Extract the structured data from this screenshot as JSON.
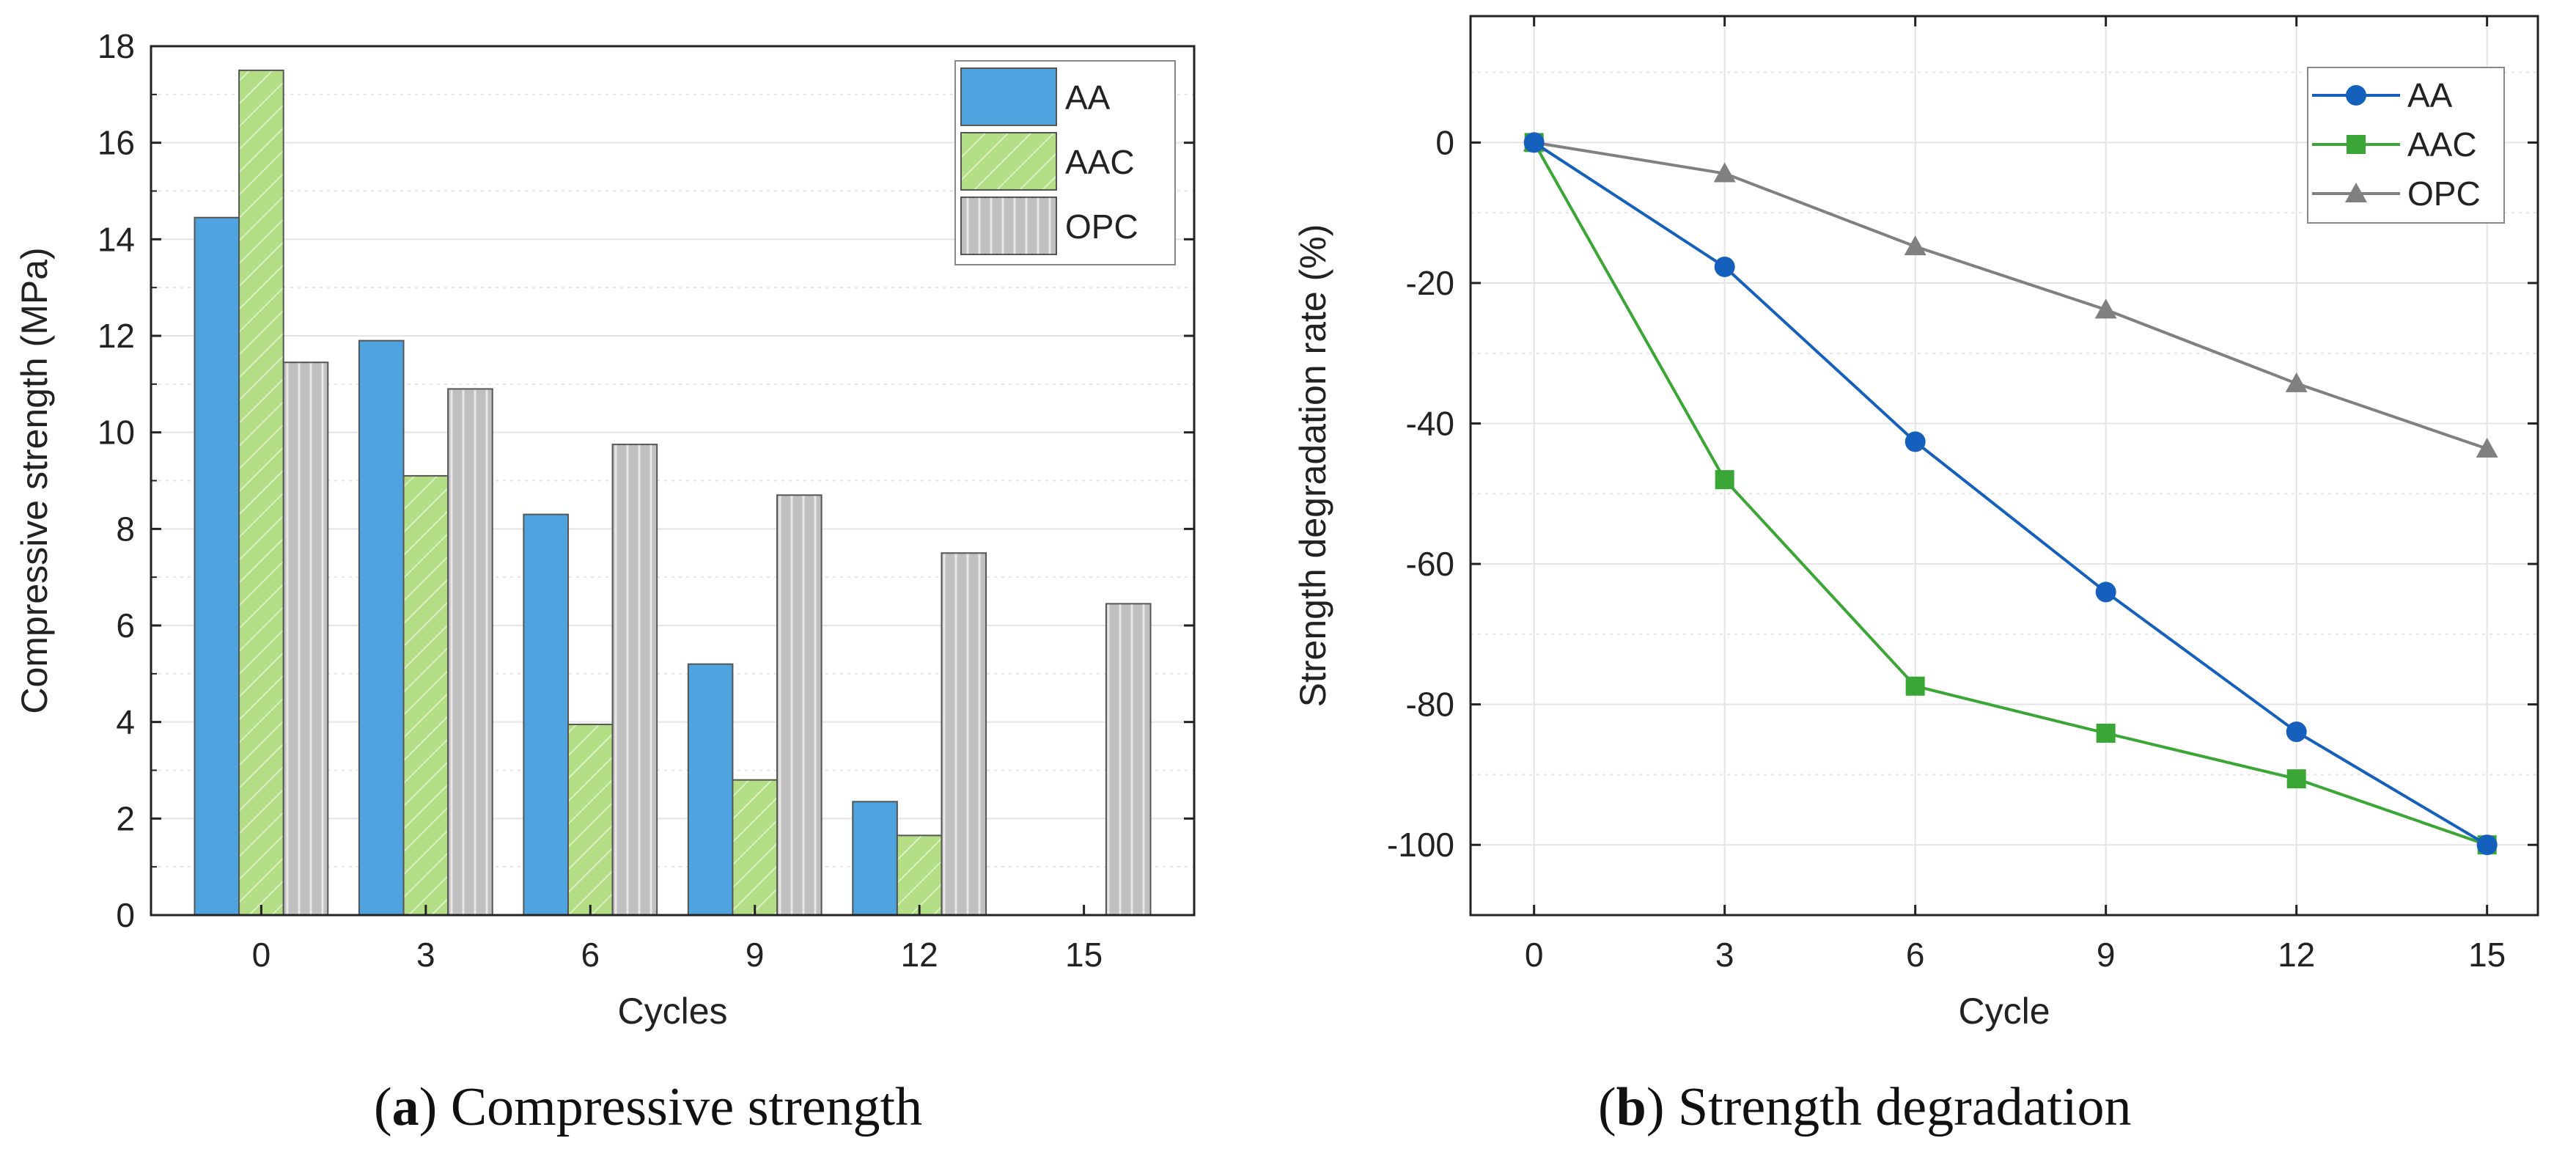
{
  "chart_data": [
    {
      "type": "bar",
      "caption_letter": "a",
      "caption_text": "Compressive strength",
      "xlabel": "Cycles",
      "ylabel": "Compressive strength (MPa)",
      "categories": [
        "0",
        "3",
        "6",
        "9",
        "12",
        "15"
      ],
      "ylim": [
        0,
        18
      ],
      "yticks": [
        0,
        2,
        4,
        6,
        8,
        10,
        12,
        14,
        16,
        18
      ],
      "grid": true,
      "legend_position": "top-right",
      "series": [
        {
          "name": "AA",
          "values": [
            14.45,
            11.9,
            8.3,
            5.2,
            2.35,
            0
          ],
          "color": "#4fa3df",
          "pattern": "solid"
        },
        {
          "name": "AAC",
          "values": [
            17.5,
            9.1,
            3.95,
            2.8,
            1.65,
            0
          ],
          "color": "#b3de85",
          "pattern": "diagonal"
        },
        {
          "name": "OPC",
          "values": [
            11.45,
            10.9,
            9.75,
            8.7,
            7.5,
            6.45
          ],
          "color": "#c0c0c0",
          "pattern": "vertical"
        }
      ]
    },
    {
      "type": "line",
      "caption_letter": "b",
      "caption_text": "Strength degradation",
      "xlabel": "Cycle",
      "ylabel": "Strength degradation rate (%)",
      "x": [
        0,
        3,
        6,
        9,
        12,
        15
      ],
      "xticks": [
        0,
        3,
        6,
        9,
        12,
        15
      ],
      "xlim": [
        -1,
        15.8
      ],
      "ylim": [
        -110,
        18
      ],
      "yticks": [
        0,
        -20,
        -40,
        -60,
        -80,
        -100
      ],
      "grid": true,
      "legend_position": "top-right",
      "series": [
        {
          "name": "AA",
          "values": [
            0,
            -17.7,
            -42.6,
            -64.0,
            -83.9,
            -100
          ],
          "color": "#1560bd",
          "marker": "circle"
        },
        {
          "name": "AAC",
          "values": [
            0,
            -48.0,
            -77.4,
            -84.1,
            -90.6,
            -100
          ],
          "color": "#3aa635",
          "marker": "square"
        },
        {
          "name": "OPC",
          "values": [
            0,
            -4.4,
            -14.8,
            -23.8,
            -34.3,
            -43.6
          ],
          "color": "#808080",
          "marker": "triangle"
        }
      ]
    }
  ]
}
